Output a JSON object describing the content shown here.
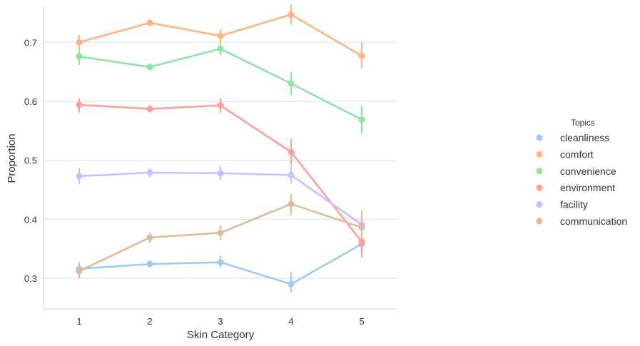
{
  "chart_data": {
    "type": "line",
    "xlabel": "Skin Category",
    "ylabel": "Proportion",
    "categories": [
      "1",
      "2",
      "3",
      "4",
      "5"
    ],
    "ylim": [
      0.248,
      0.762
    ],
    "yticks": [
      0.3,
      0.4,
      0.5,
      0.6,
      0.7
    ],
    "ytick_labels": [
      "0.3",
      "0.4",
      "0.5",
      "0.6",
      "0.7"
    ],
    "grid": "horizontal",
    "error_bars": true,
    "legend": {
      "title": "Topics",
      "position": "right"
    },
    "series": [
      {
        "name": "cleanliness",
        "color": "#a1c9f4",
        "values": [
          0.316,
          0.324,
          0.327,
          0.29,
          0.358
        ],
        "err": [
          [
            0.305,
            0.327
          ],
          [
            0.318,
            0.33
          ],
          [
            0.317,
            0.338
          ],
          [
            0.276,
            0.31
          ],
          [
            0.336,
            0.369
          ]
        ]
      },
      {
        "name": "comfort",
        "color": "#ffb482",
        "values": [
          0.7,
          0.733,
          0.711,
          0.747,
          0.677
        ],
        "err": [
          [
            0.69,
            0.712
          ],
          [
            0.728,
            0.738
          ],
          [
            0.7,
            0.722
          ],
          [
            0.73,
            0.764
          ],
          [
            0.656,
            0.7
          ]
        ]
      },
      {
        "name": "convenience",
        "color": "#8de5a1",
        "values": [
          0.676,
          0.658,
          0.689,
          0.63,
          0.569
        ],
        "err": [
          [
            0.662,
            0.69
          ],
          [
            0.652,
            0.664
          ],
          [
            0.678,
            0.7
          ],
          [
            0.611,
            0.65
          ],
          [
            0.545,
            0.592
          ]
        ]
      },
      {
        "name": "environment",
        "color": "#ff9f9b",
        "values": [
          0.594,
          0.587,
          0.593,
          0.514,
          0.362
        ],
        "err": [
          [
            0.581,
            0.605
          ],
          [
            0.581,
            0.593
          ],
          [
            0.58,
            0.605
          ],
          [
            0.493,
            0.536
          ],
          [
            0.336,
            0.375
          ]
        ]
      },
      {
        "name": "facility",
        "color": "#d0bbff",
        "values": [
          0.473,
          0.479,
          0.478,
          0.475,
          0.391
        ],
        "err": [
          [
            0.46,
            0.487
          ],
          [
            0.471,
            0.486
          ],
          [
            0.466,
            0.49
          ],
          [
            0.461,
            0.49
          ],
          [
            0.366,
            0.415
          ]
        ]
      },
      {
        "name": "communication",
        "color": "#debb9b",
        "values": [
          0.312,
          0.369,
          0.377,
          0.426,
          0.386
        ],
        "err": [
          [
            0.3,
            0.324
          ],
          [
            0.36,
            0.377
          ],
          [
            0.365,
            0.39
          ],
          [
            0.408,
            0.443
          ],
          [
            0.365,
            0.406
          ]
        ]
      }
    ]
  }
}
